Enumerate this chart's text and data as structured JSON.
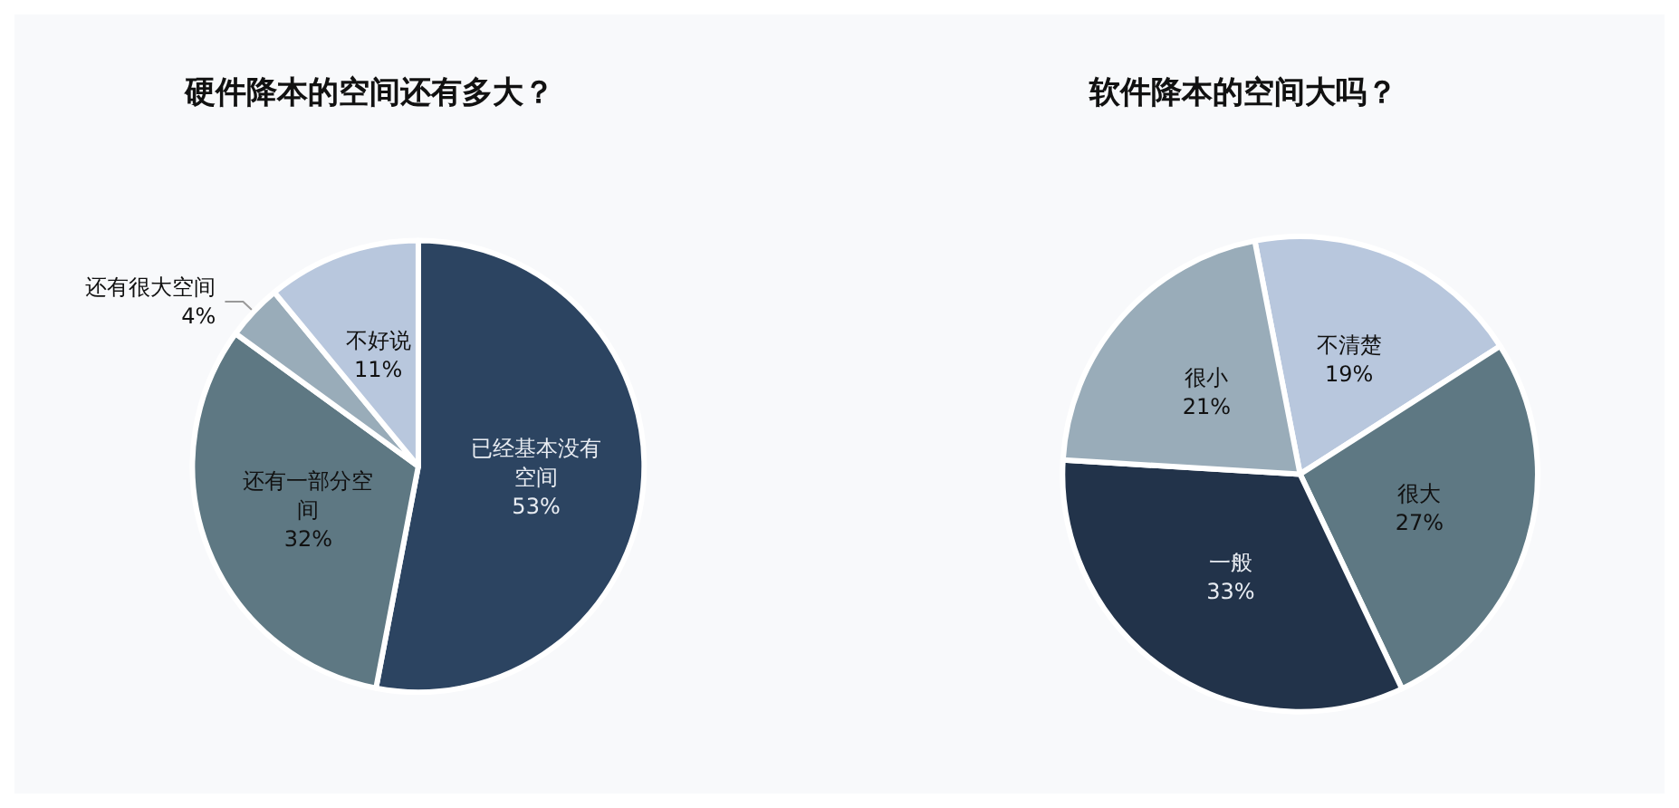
{
  "chart_data": [
    {
      "type": "pie",
      "title": "硬件降本的空间还有多大？",
      "categories": [
        "已经基本没有空间",
        "还有一部分空间",
        "还有很大空间",
        "不好说"
      ],
      "values": [
        53,
        32,
        4,
        11
      ],
      "colors": [
        "#2c4461",
        "#5e7883",
        "#99acb9",
        "#b8c7dd"
      ],
      "value_labels": [
        "53%",
        "32%",
        "4%",
        "11%"
      ],
      "legend": false
    },
    {
      "type": "pie",
      "title": "软件降本的空间大吗？",
      "categories": [
        "不清楚",
        "很大",
        "一般",
        "很小"
      ],
      "values": [
        19,
        27,
        33,
        21
      ],
      "colors": [
        "#b8c7dd",
        "#5e7883",
        "#22334a",
        "#99acb9"
      ],
      "value_labels": [
        "19%",
        "27%",
        "33%",
        "21%"
      ],
      "legend": false
    }
  ]
}
